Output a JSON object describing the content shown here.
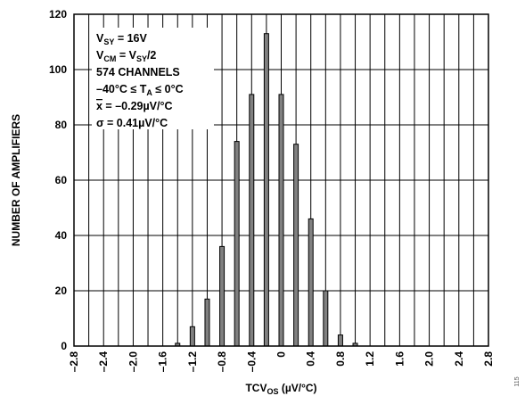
{
  "chart_data": {
    "type": "bar",
    "title": "",
    "xlabel": "TCV_OS (µV/°C)",
    "ylabel": "NUMBER OF AMPLIFIERS",
    "x_ticks": [
      "–2.8",
      "–2.4",
      "–2.0",
      "–1.6",
      "–1.2",
      "–0.8",
      "–0.4",
      "0",
      "0.4",
      "0.8",
      "1.2",
      "1.6",
      "2.0",
      "2.4",
      "2.8"
    ],
    "y_ticks": [
      "0",
      "20",
      "40",
      "60",
      "80",
      "100",
      "120"
    ],
    "xlim": [
      -2.8,
      2.8
    ],
    "ylim": [
      0,
      120
    ],
    "grid": true,
    "bar_color": "#808080",
    "bars": [
      {
        "x": -1.4,
        "value": 1
      },
      {
        "x": -1.2,
        "value": 7
      },
      {
        "x": -1.0,
        "value": 17
      },
      {
        "x": -0.8,
        "value": 36
      },
      {
        "x": -0.6,
        "value": 74
      },
      {
        "x": -0.4,
        "value": 91
      },
      {
        "x": -0.2,
        "value": 113
      },
      {
        "x": 0.0,
        "value": 91
      },
      {
        "x": 0.2,
        "value": 73
      },
      {
        "x": 0.4,
        "value": 46
      },
      {
        "x": 0.6,
        "value": 20
      },
      {
        "x": 0.8,
        "value": 4
      },
      {
        "x": 1.0,
        "value": 1
      }
    ],
    "annotations": [
      {
        "main": "V",
        "sub": "SY",
        "rest": " = 16V"
      },
      {
        "main": "V",
        "sub": "CM",
        "rest": " = V",
        "sub2": "SY",
        "rest2": "/2"
      },
      {
        "main": "574 CHANNELS"
      },
      {
        "main": "–40°C ≤ T",
        "sub": "A",
        "rest": " ≤ 0°C"
      },
      {
        "main": "x",
        "overline": true,
        "rest": " = –0.29µV/°C"
      },
      {
        "main": "σ = 0.41µV/°C"
      }
    ],
    "figure_id": "115"
  }
}
